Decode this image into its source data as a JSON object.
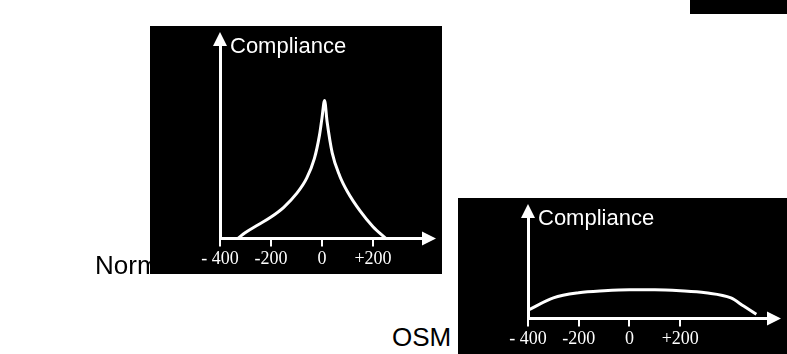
{
  "chart_data": [
    {
      "type": "line",
      "title": "Normal",
      "y_label": "Compliance",
      "color": "#ffffff",
      "x": [
        -330,
        -300,
        -250,
        -200,
        -150,
        -100,
        -60,
        -30,
        -10,
        0,
        10,
        20,
        40,
        70,
        100,
        150,
        200,
        250
      ],
      "values": [
        0,
        0.03,
        0.07,
        0.11,
        0.16,
        0.23,
        0.31,
        0.41,
        0.53,
        0.62,
        0.71,
        0.6,
        0.44,
        0.32,
        0.24,
        0.14,
        0.06,
        0
      ],
      "xlim": [
        -400,
        400
      ],
      "xticks": [
        {
          "value": -400,
          "label": "- 400"
        },
        -200,
        0,
        {
          "value": 200,
          "label": "+200"
        }
      ],
      "ylim": [
        0,
        1
      ],
      "tick_labels": "x"
    },
    {
      "type": "line",
      "title": "OSM",
      "y_label": "Compliance",
      "color": "#ffffff",
      "x": [
        -400,
        -300,
        -200,
        -100,
        0,
        100,
        200,
        300,
        400,
        450,
        500
      ],
      "values": [
        0.08,
        0.2,
        0.25,
        0.27,
        0.28,
        0.28,
        0.27,
        0.25,
        0.2,
        0.12,
        0.04
      ],
      "xlim": [
        -400,
        550
      ],
      "xticks": [
        {
          "value": -400,
          "label": "- 400"
        },
        -200,
        0,
        {
          "value": 200,
          "label": "+200"
        }
      ],
      "ylim": [
        0,
        1
      ],
      "tick_labels": "x"
    }
  ]
}
